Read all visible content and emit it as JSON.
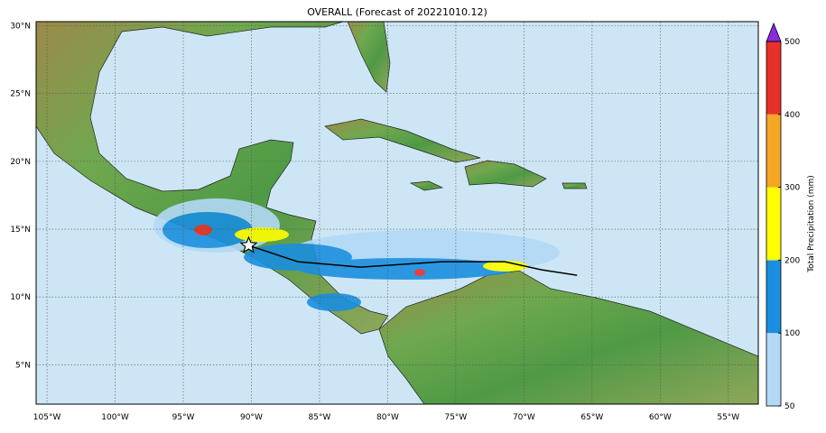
{
  "title": "OVERALL (Forecast of 20221010.12)",
  "lonlim": [
    -105.8,
    -52.8
  ],
  "latlim": [
    2.1,
    30.3
  ],
  "lon_ticks": [
    {
      "value": -105,
      "label": "105°W"
    },
    {
      "value": -100,
      "label": "100°W"
    },
    {
      "value": -95,
      "label": "95°W"
    },
    {
      "value": -90,
      "label": "90°W"
    },
    {
      "value": -85,
      "label": "85°W"
    },
    {
      "value": -80,
      "label": "80°W"
    },
    {
      "value": -75,
      "label": "75°W"
    },
    {
      "value": -70,
      "label": "70°W"
    },
    {
      "value": -65,
      "label": "65°W"
    },
    {
      "value": -60,
      "label": "60°W"
    },
    {
      "value": -55,
      "label": "55°W"
    }
  ],
  "lat_ticks": [
    {
      "value": 5,
      "label": "5°N"
    },
    {
      "value": 10,
      "label": "10°N"
    },
    {
      "value": 15,
      "label": "15°N"
    },
    {
      "value": 20,
      "label": "20°N"
    },
    {
      "value": 25,
      "label": "25°N"
    },
    {
      "value": 30,
      "label": "30°N"
    }
  ],
  "track": {
    "lon": [
      -90.2,
      -86.6,
      -82.0,
      -76.0,
      -71.4,
      -68.7,
      -66.1
    ],
    "lat": [
      13.8,
      12.6,
      12.2,
      12.6,
      12.6,
      12.0,
      11.6
    ]
  },
  "colorbar": {
    "label": "Total Precipitation (mm)",
    "levels": [
      50,
      100,
      200,
      300,
      400,
      500
    ],
    "colors": [
      "#b3d9f7",
      "#1a8fdf",
      "#ffff00",
      "#f5a623",
      "#e8302a"
    ],
    "extend_color": "#8a2be2"
  }
}
